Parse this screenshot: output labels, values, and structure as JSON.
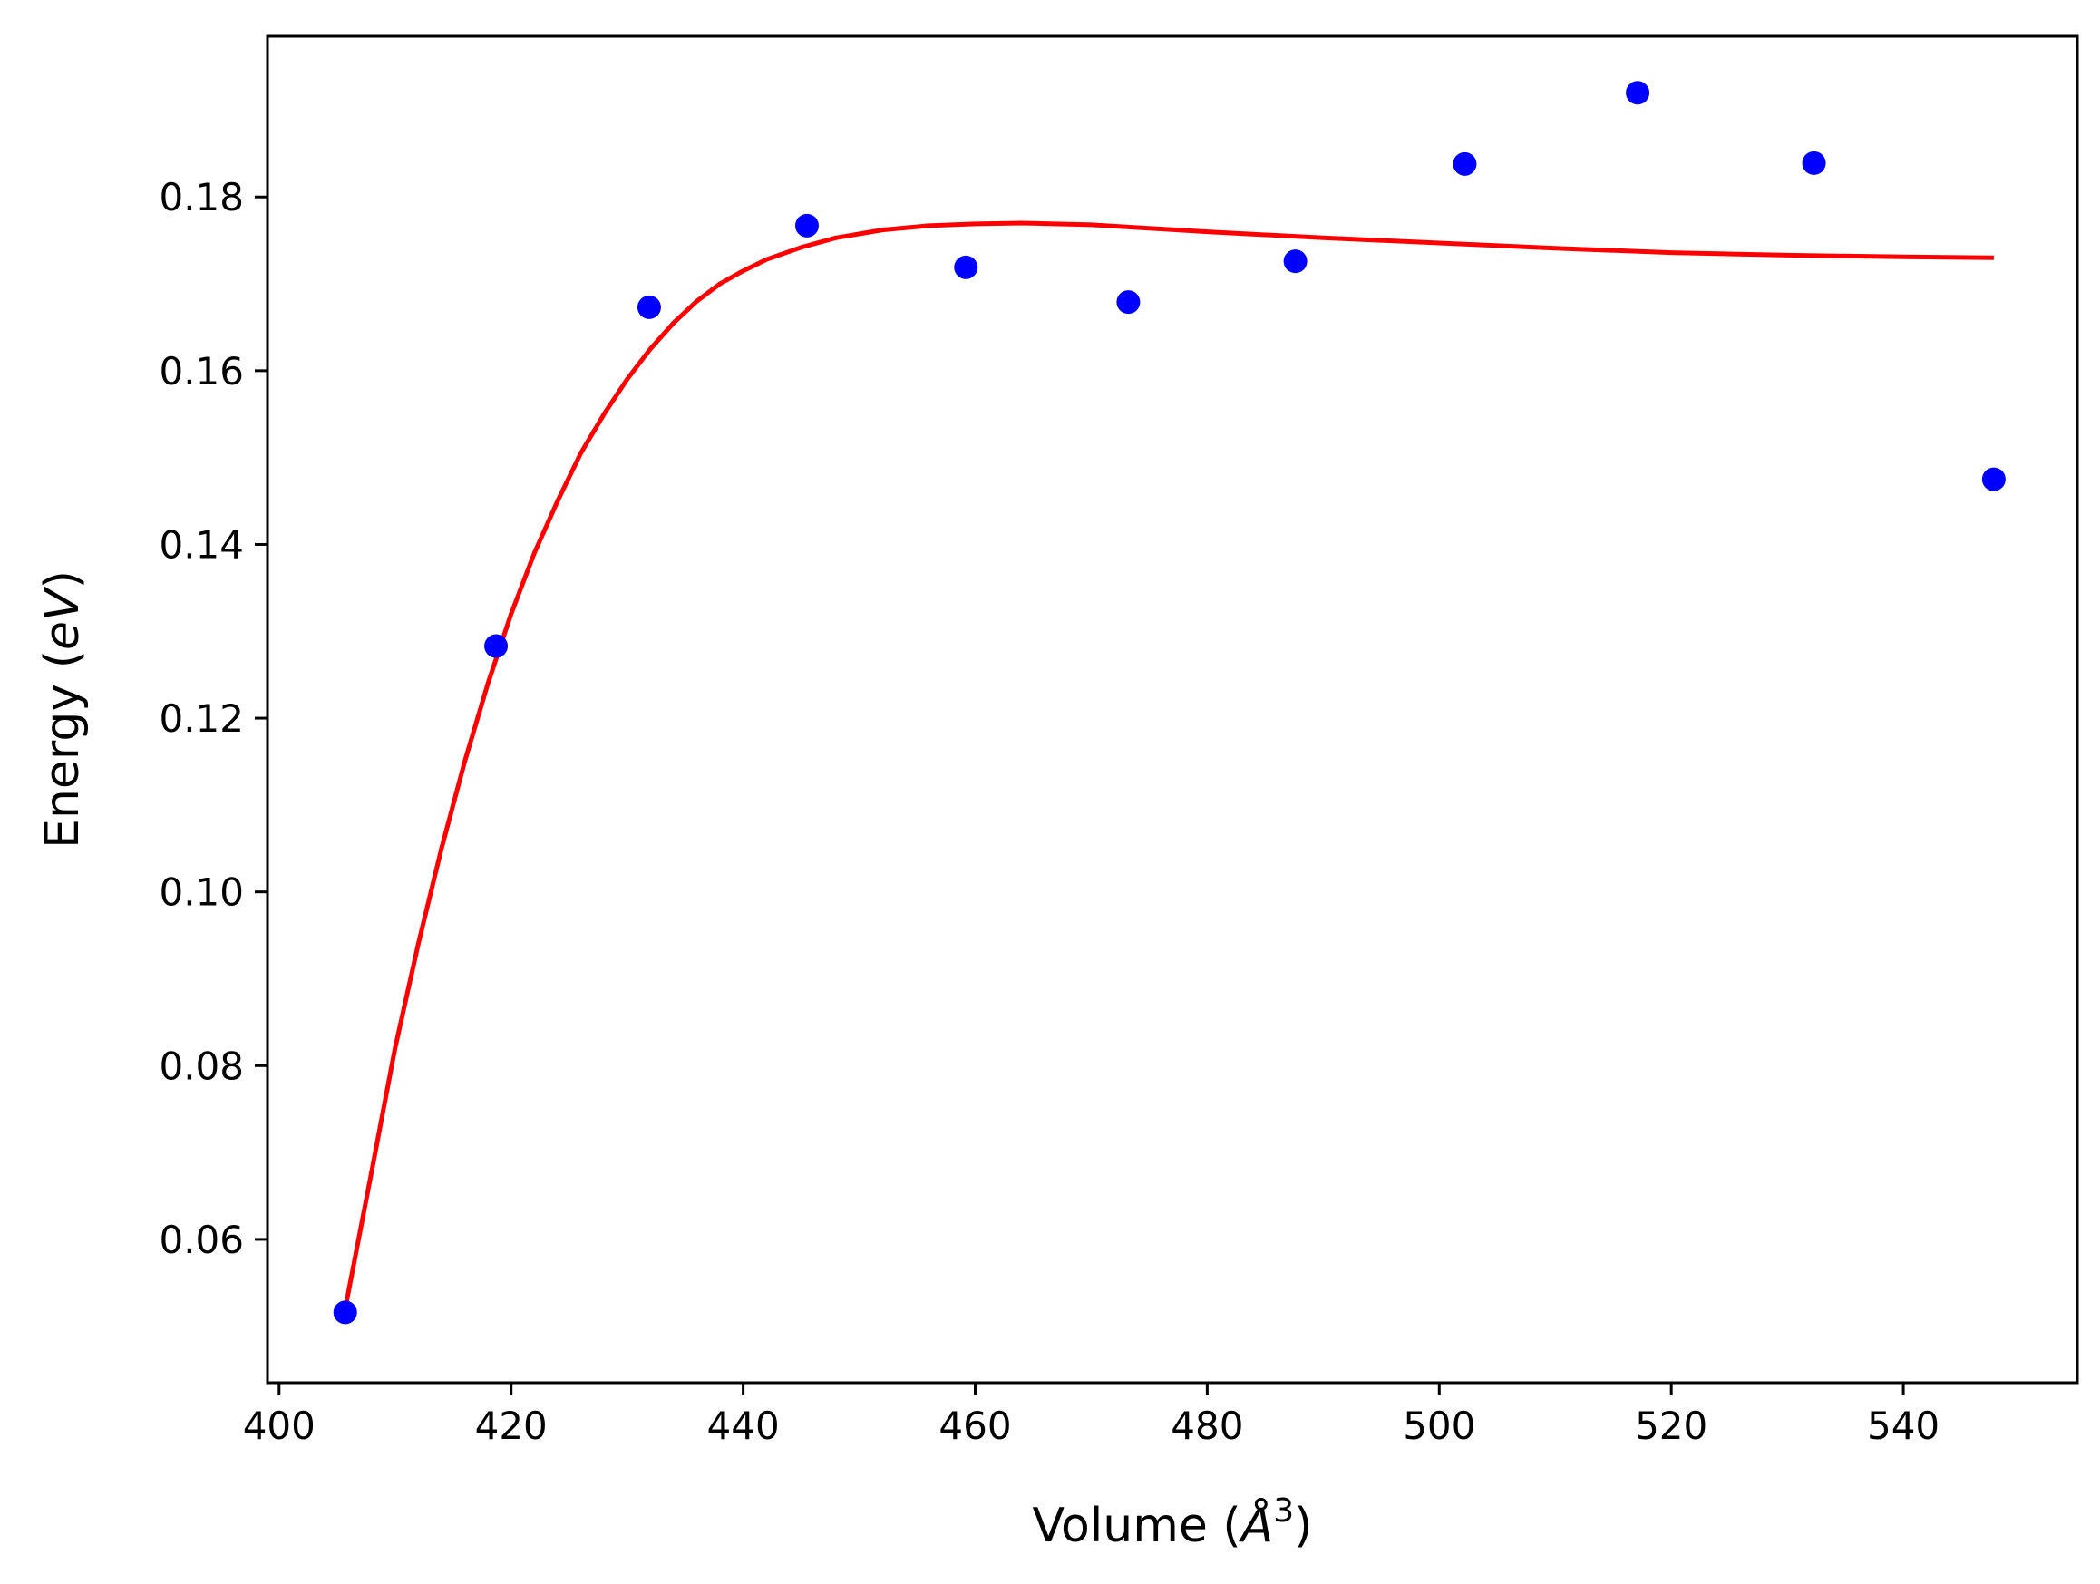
{
  "chart_data": {
    "type": "scatter",
    "xlabel": {
      "prefix": "Volume (",
      "unit": "Å",
      "sup": "3",
      "suffix": ")"
    },
    "ylabel": {
      "prefix": "Energy (",
      "unit": "eV",
      "suffix": ")"
    },
    "xlim": [
      399,
      555
    ],
    "ylim": [
      0.0435,
      0.1985
    ],
    "xticks": [
      400,
      420,
      440,
      460,
      480,
      500,
      520,
      540
    ],
    "xtick_labels": [
      "400",
      "420",
      "440",
      "460",
      "480",
      "500",
      "520",
      "540"
    ],
    "yticks": [
      0.06,
      0.08,
      0.1,
      0.12,
      0.14,
      0.16,
      0.18
    ],
    "ytick_labels": [
      "0.06",
      "0.08",
      "0.10",
      "0.12",
      "0.14",
      "0.16",
      "0.18"
    ],
    "grid": false,
    "series": [
      {
        "kind": "scatter",
        "color": "#0000ff",
        "points": [
          [
            405.7,
            0.0516
          ],
          [
            418.7,
            0.1283
          ],
          [
            431.9,
            0.1673
          ],
          [
            445.5,
            0.1767
          ],
          [
            459.2,
            0.1719
          ],
          [
            473.2,
            0.1679
          ],
          [
            487.6,
            0.1726
          ],
          [
            502.2,
            0.1838
          ],
          [
            517.1,
            0.192
          ],
          [
            532.3,
            0.1839
          ],
          [
            547.8,
            0.1475
          ]
        ]
      },
      {
        "kind": "line",
        "color": "#ff0000",
        "points": [
          [
            405.7,
            0.052
          ],
          [
            408,
            0.068
          ],
          [
            410,
            0.082
          ],
          [
            412,
            0.094
          ],
          [
            414,
            0.105
          ],
          [
            416,
            0.115
          ],
          [
            418,
            0.124
          ],
          [
            420,
            0.132
          ],
          [
            422,
            0.139
          ],
          [
            424,
            0.145
          ],
          [
            426,
            0.1505
          ],
          [
            428,
            0.155
          ],
          [
            430,
            0.159
          ],
          [
            432,
            0.1625
          ],
          [
            434,
            0.1655
          ],
          [
            436,
            0.168
          ],
          [
            438,
            0.17
          ],
          [
            440,
            0.1715
          ],
          [
            442,
            0.1728
          ],
          [
            445,
            0.1742
          ],
          [
            448,
            0.1753
          ],
          [
            452,
            0.1762
          ],
          [
            456,
            0.1767
          ],
          [
            460,
            0.1769
          ],
          [
            464,
            0.177
          ],
          [
            470,
            0.1768
          ],
          [
            480,
            0.176
          ],
          [
            490,
            0.1753
          ],
          [
            500,
            0.1747
          ],
          [
            510,
            0.1741
          ],
          [
            520,
            0.1736
          ],
          [
            530,
            0.1733
          ],
          [
            540,
            0.1731
          ],
          [
            547.8,
            0.173
          ]
        ]
      }
    ]
  }
}
